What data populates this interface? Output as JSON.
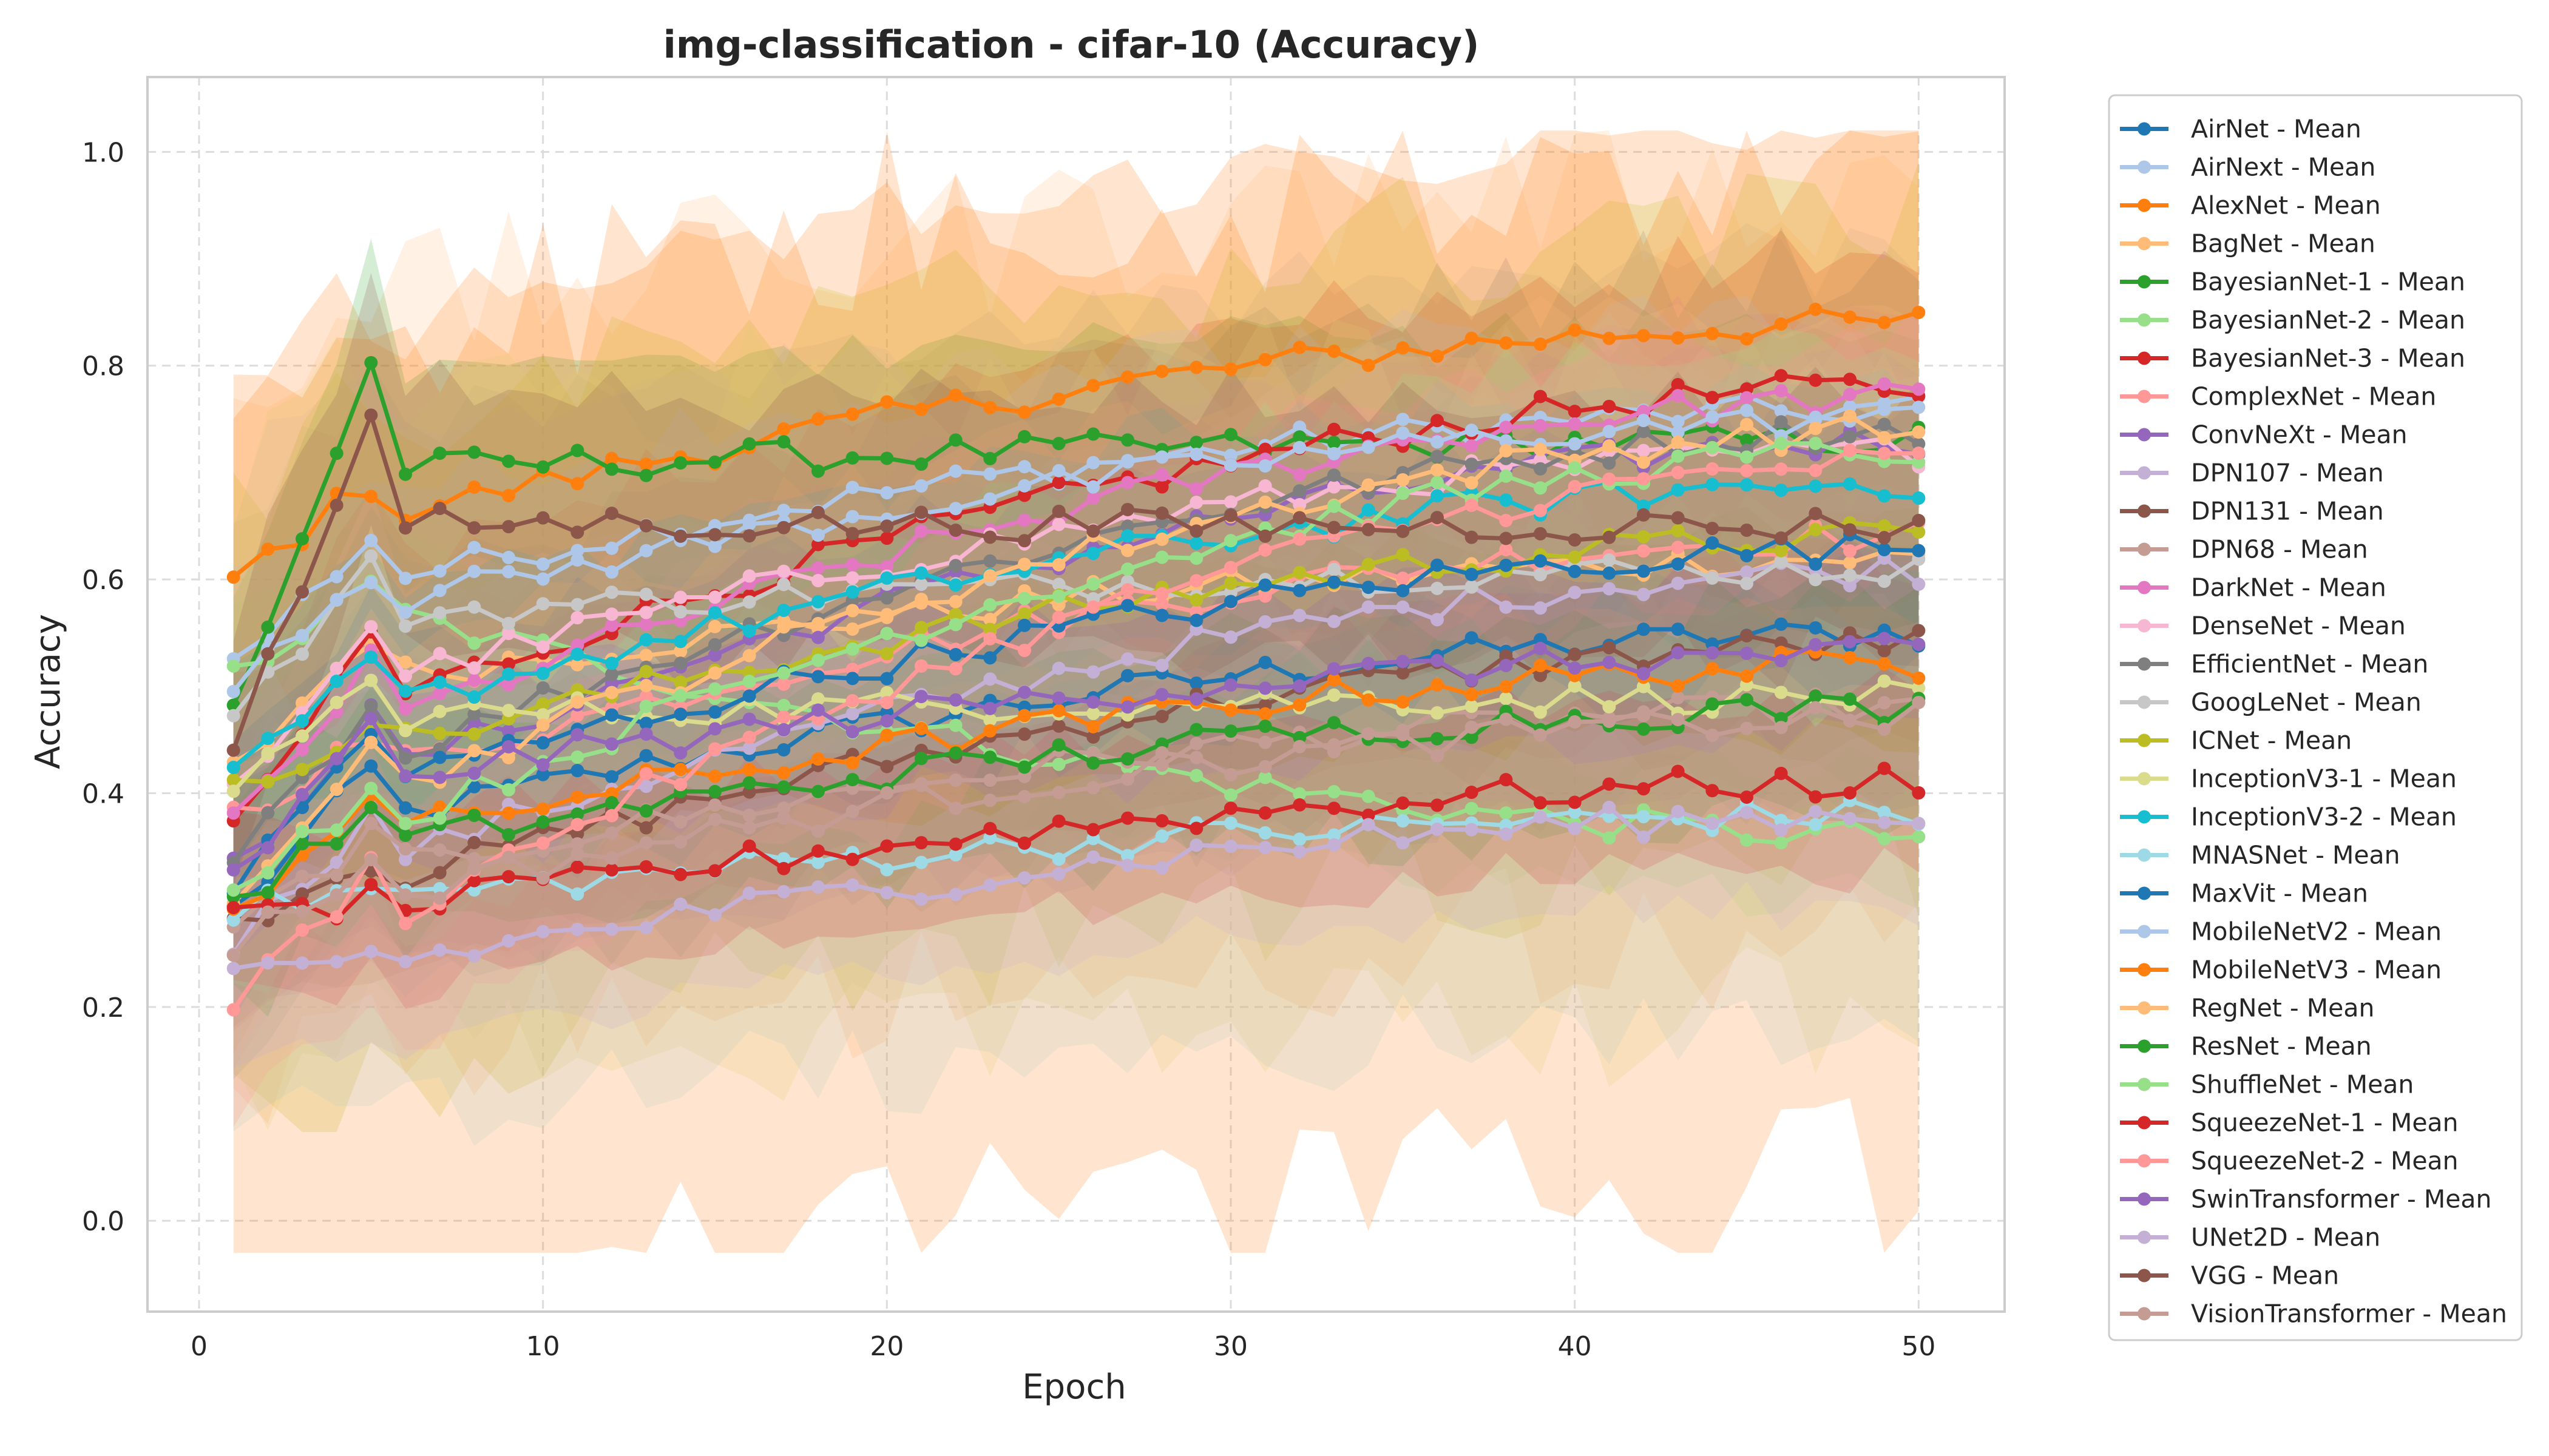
{
  "chart_data": {
    "type": "line",
    "title": "img-classification - cifar-10 (Accuracy)",
    "xlabel": "Epoch",
    "ylabel": "Accuracy",
    "xlim": [
      -1.5,
      52.5
    ],
    "ylim": [
      -0.085,
      1.07
    ],
    "xticks": [
      0,
      10,
      20,
      30,
      40,
      50
    ],
    "yticks": [
      0.0,
      0.2,
      0.4,
      0.6,
      0.8,
      1.0
    ],
    "grid": true,
    "legend_position": "outside-right",
    "x": [
      1,
      2,
      3,
      4,
      5,
      6,
      7,
      8,
      9,
      10,
      11,
      12,
      13,
      14,
      15,
      16,
      17,
      18,
      19,
      20,
      21,
      22,
      23,
      24,
      25,
      26,
      27,
      28,
      29,
      30,
      31,
      32,
      33,
      34,
      35,
      36,
      37,
      38,
      39,
      40,
      41,
      42,
      43,
      44,
      45,
      46,
      47,
      48,
      49,
      50
    ],
    "series": [
      {
        "name": "AirNet - Mean",
        "color": "#1f77b4",
        "start": 0.29,
        "peak": 0.42,
        "end": 0.55,
        "spread": 0.15
      },
      {
        "name": "AirNext - Mean",
        "color": "#aec7e8",
        "start": 0.52,
        "peak": 0.64,
        "end": 0.76,
        "spread": 0.14
      },
      {
        "name": "AlexNet - Mean",
        "color": "#ff7f0e",
        "start": 0.6,
        "peak": 0.69,
        "end": 0.84,
        "spread": 0.18
      },
      {
        "name": "BagNet - Mean",
        "color": "#ffbb78",
        "start": 0.42,
        "peak": 0.55,
        "end": 0.62,
        "spread": 0.35
      },
      {
        "name": "BayesianNet-1 - Mean",
        "color": "#2ca02c",
        "start": 0.48,
        "peak": 0.8,
        "end": 0.73,
        "spread": 0.1
      },
      {
        "name": "BayesianNet-2 - Mean",
        "color": "#98df8a",
        "start": 0.51,
        "peak": 0.59,
        "end": 0.36,
        "spread": 0.06
      },
      {
        "name": "BayesianNet-3 - Mean",
        "color": "#d62728",
        "start": 0.36,
        "peak": 0.55,
        "end": 0.78,
        "spread": 0.12
      },
      {
        "name": "ComplexNet - Mean",
        "color": "#ff9896",
        "start": 0.38,
        "peak": 0.45,
        "end": 0.64,
        "spread": 0.08
      },
      {
        "name": "ConvNeXt - Mean",
        "color": "#9467bd",
        "start": 0.33,
        "peak": 0.47,
        "end": 0.73,
        "spread": 0.08
      },
      {
        "name": "DPN107 - Mean",
        "color": "#c5b0d5",
        "start": 0.26,
        "peak": 0.38,
        "end": 0.61,
        "spread": 0.1
      },
      {
        "name": "DPN131 - Mean",
        "color": "#8c564b",
        "start": 0.28,
        "peak": 0.34,
        "end": 0.54,
        "spread": 0.09
      },
      {
        "name": "DPN68 - Mean",
        "color": "#c49c94",
        "start": 0.27,
        "peak": 0.36,
        "end": 0.48,
        "spread": 0.08
      },
      {
        "name": "DarkNet - Mean",
        "color": "#e377c2",
        "start": 0.37,
        "peak": 0.52,
        "end": 0.77,
        "spread": 0.08
      },
      {
        "name": "DenseNet - Mean",
        "color": "#f7b6d2",
        "start": 0.4,
        "peak": 0.56,
        "end": 0.72,
        "spread": 0.07
      },
      {
        "name": "EfficientNet - Mean",
        "color": "#7f7f7f",
        "start": 0.35,
        "peak": 0.48,
        "end": 0.74,
        "spread": 0.16
      },
      {
        "name": "GoogLeNet - Mean",
        "color": "#c7c7c7",
        "start": 0.47,
        "peak": 0.61,
        "end": 0.61,
        "spread": 0.2
      },
      {
        "name": "ICNet - Mean",
        "color": "#bcbd22",
        "start": 0.4,
        "peak": 0.47,
        "end": 0.64,
        "spread": 0.3
      },
      {
        "name": "InceptionV3-1 - Mean",
        "color": "#dbdb8d",
        "start": 0.41,
        "peak": 0.5,
        "end": 0.49,
        "spread": 0.3
      },
      {
        "name": "InceptionV3-2 - Mean",
        "color": "#17becf",
        "start": 0.41,
        "peak": 0.52,
        "end": 0.69,
        "spread": 0.1
      },
      {
        "name": "MNASNet - Mean",
        "color": "#9edae5",
        "start": 0.29,
        "peak": 0.31,
        "end": 0.38,
        "spread": 0.2
      },
      {
        "name": "MaxVit - Mean",
        "color": "#1f77b4",
        "start": 0.31,
        "peak": 0.46,
        "end": 0.63,
        "spread": 0.12
      },
      {
        "name": "MobileNetV2 - Mean",
        "color": "#aec7e8",
        "start": 0.51,
        "peak": 0.61,
        "end": 0.75,
        "spread": 0.1
      },
      {
        "name": "MobileNetV3 - Mean",
        "color": "#ff7f0e",
        "start": 0.29,
        "peak": 0.4,
        "end": 0.52,
        "spread": 0.48
      },
      {
        "name": "RegNet - Mean",
        "color": "#ffbb78",
        "start": 0.31,
        "peak": 0.45,
        "end": 0.74,
        "spread": 0.12
      },
      {
        "name": "ResNet - Mean",
        "color": "#2ca02c",
        "start": 0.3,
        "peak": 0.38,
        "end": 0.48,
        "spread": 0.1
      },
      {
        "name": "ShuffleNet - Mean",
        "color": "#98df8a",
        "start": 0.32,
        "peak": 0.4,
        "end": 0.72,
        "spread": 0.1
      },
      {
        "name": "SqueezeNet-1 - Mean",
        "color": "#d62728",
        "start": 0.28,
        "peak": 0.3,
        "end": 0.41,
        "spread": 0.08
      },
      {
        "name": "SqueezeNet-2 - Mean",
        "color": "#ff9896",
        "start": 0.2,
        "peak": 0.33,
        "end": 0.71,
        "spread": 0.12
      },
      {
        "name": "SwinTransformer - Mean",
        "color": "#9467bd",
        "start": 0.32,
        "peak": 0.46,
        "end": 0.53,
        "spread": 0.08
      },
      {
        "name": "UNet2D - Mean",
        "color": "#c5b0d5",
        "start": 0.23,
        "peak": 0.25,
        "end": 0.38,
        "spread": 0.08
      },
      {
        "name": "VGG - Mean",
        "color": "#8c564b",
        "start": 0.45,
        "peak": 0.74,
        "end": 0.65,
        "spread": 0.12
      },
      {
        "name": "VisionTransformer - Mean",
        "color": "#c49c94",
        "start": 0.26,
        "peak": 0.33,
        "end": 0.47,
        "spread": 0.08
      }
    ]
  }
}
